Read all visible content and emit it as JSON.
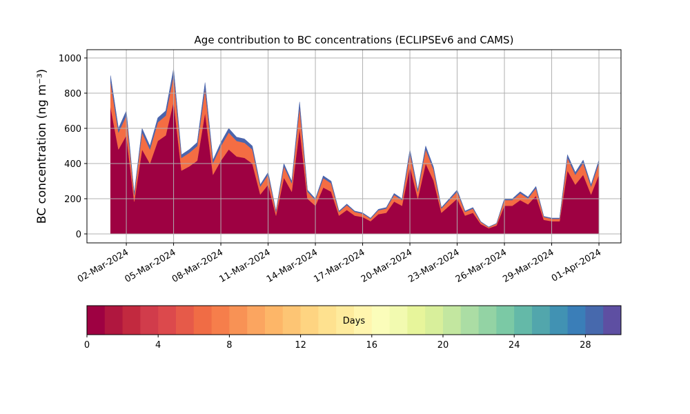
{
  "chart_data": {
    "type": "stacked_area",
    "title": "Age contribution to BC concentrations (ECLIPSEv6 and CAMS)",
    "y_label": "BC concentration (ng m⁻³)",
    "x": [
      1,
      1.5,
      2,
      2.5,
      3,
      3.5,
      4,
      4.5,
      5,
      5.5,
      6,
      6.5,
      7,
      7.5,
      8,
      8.5,
      9,
      9.5,
      10,
      10.5,
      11,
      11.5,
      12,
      12.5,
      13,
      13.5,
      14,
      14.5,
      15,
      15.5,
      16,
      16.5,
      17,
      17.5,
      18,
      18.5,
      19,
      19.5,
      20,
      20.5,
      21,
      21.5,
      22,
      22.5,
      23,
      23.5,
      24,
      24.5,
      25,
      25.5,
      26,
      26.5,
      27,
      27.5,
      28,
      28.5,
      29,
      29.5,
      30,
      30.5,
      31,
      31.5,
      32
    ],
    "series": [
      {
        "color": "#9e0142",
        "values": [
          720,
          480,
          560,
          184,
          480,
          400,
          528,
          560,
          752,
          360,
          384,
          416,
          688,
          336,
          416,
          480,
          440,
          432,
          400,
          224,
          280,
          104,
          320,
          240,
          600,
          200,
          160,
          264,
          240,
          104,
          136,
          104,
          96,
          72,
          112,
          120,
          184,
          160,
          384,
          200,
          400,
          304,
          120,
          160,
          200,
          104,
          120,
          56,
          32,
          48,
          160,
          160,
          192,
          168,
          216,
          80,
          72,
          72,
          360,
          280,
          336,
          224,
          336
        ]
      },
      {
        "color": "#f46d43",
        "values": [
          144,
          96,
          112,
          37,
          96,
          80,
          106,
          112,
          150,
          72,
          77,
          83,
          138,
          67,
          83,
          96,
          88,
          86,
          80,
          45,
          56,
          21,
          64,
          48,
          120,
          40,
          32,
          53,
          48,
          21,
          27,
          21,
          19,
          14,
          22,
          24,
          37,
          32,
          77,
          40,
          80,
          61,
          24,
          32,
          40,
          21,
          24,
          11,
          6,
          10,
          32,
          32,
          38,
          34,
          43,
          16,
          14,
          14,
          72,
          56,
          67,
          45,
          67
        ]
      },
      {
        "color": "#4b65ad",
        "values": [
          36,
          24,
          28,
          9,
          24,
          20,
          26,
          28,
          38,
          18,
          19,
          21,
          34,
          17,
          21,
          24,
          22,
          22,
          20,
          11,
          14,
          5,
          16,
          12,
          30,
          10,
          8,
          13,
          12,
          5,
          7,
          5,
          5,
          4,
          6,
          6,
          9,
          8,
          19,
          10,
          20,
          15,
          6,
          8,
          10,
          5,
          6,
          3,
          2,
          2,
          8,
          8,
          10,
          8,
          11,
          4,
          4,
          4,
          18,
          14,
          17,
          11,
          17
        ]
      }
    ],
    "xlim": [
      -0.5,
      33.4
    ],
    "xticks": [
      {
        "value": 2,
        "label": "02-Mar-2024"
      },
      {
        "value": 5,
        "label": "05-Mar-2024"
      },
      {
        "value": 8,
        "label": "08-Mar-2024"
      },
      {
        "value": 11,
        "label": "11-Mar-2024"
      },
      {
        "value": 14,
        "label": "14-Mar-2024"
      },
      {
        "value": 17,
        "label": "17-Mar-2024"
      },
      {
        "value": 20,
        "label": "20-Mar-2024"
      },
      {
        "value": 23,
        "label": "23-Mar-2024"
      },
      {
        "value": 26,
        "label": "26-Mar-2024"
      },
      {
        "value": 29,
        "label": "29-Mar-2024"
      },
      {
        "value": 32,
        "label": "01-Apr-2024"
      }
    ],
    "ylim": [
      -51,
      1047
    ],
    "yticks": [
      0,
      200,
      400,
      600,
      800,
      1000
    ],
    "grid": true,
    "colorbar": {
      "label": "Days",
      "lim": [
        0,
        30
      ],
      "ticks": [
        0,
        4,
        8,
        12,
        16,
        20,
        24,
        28
      ],
      "colors": [
        "#9e0142",
        "#b0173f",
        "#c2293f",
        "#d13c4b",
        "#dc494c",
        "#e65a49",
        "#f06c45",
        "#f67e4b",
        "#f89255",
        "#fba560",
        "#fdb668",
        "#fdc574",
        "#fed481",
        "#fee18f",
        "#feeb9d",
        "#fff5ae",
        "#fbfdba",
        "#f2fab0",
        "#e7f59b",
        "#d8ef9b",
        "#c3e7a0",
        "#abdda4",
        "#93d3a4",
        "#7bc9a5",
        "#64b9a8",
        "#52a6ac",
        "#4192b3",
        "#3a7eb8",
        "#4769ad",
        "#5e4fa2"
      ]
    }
  }
}
